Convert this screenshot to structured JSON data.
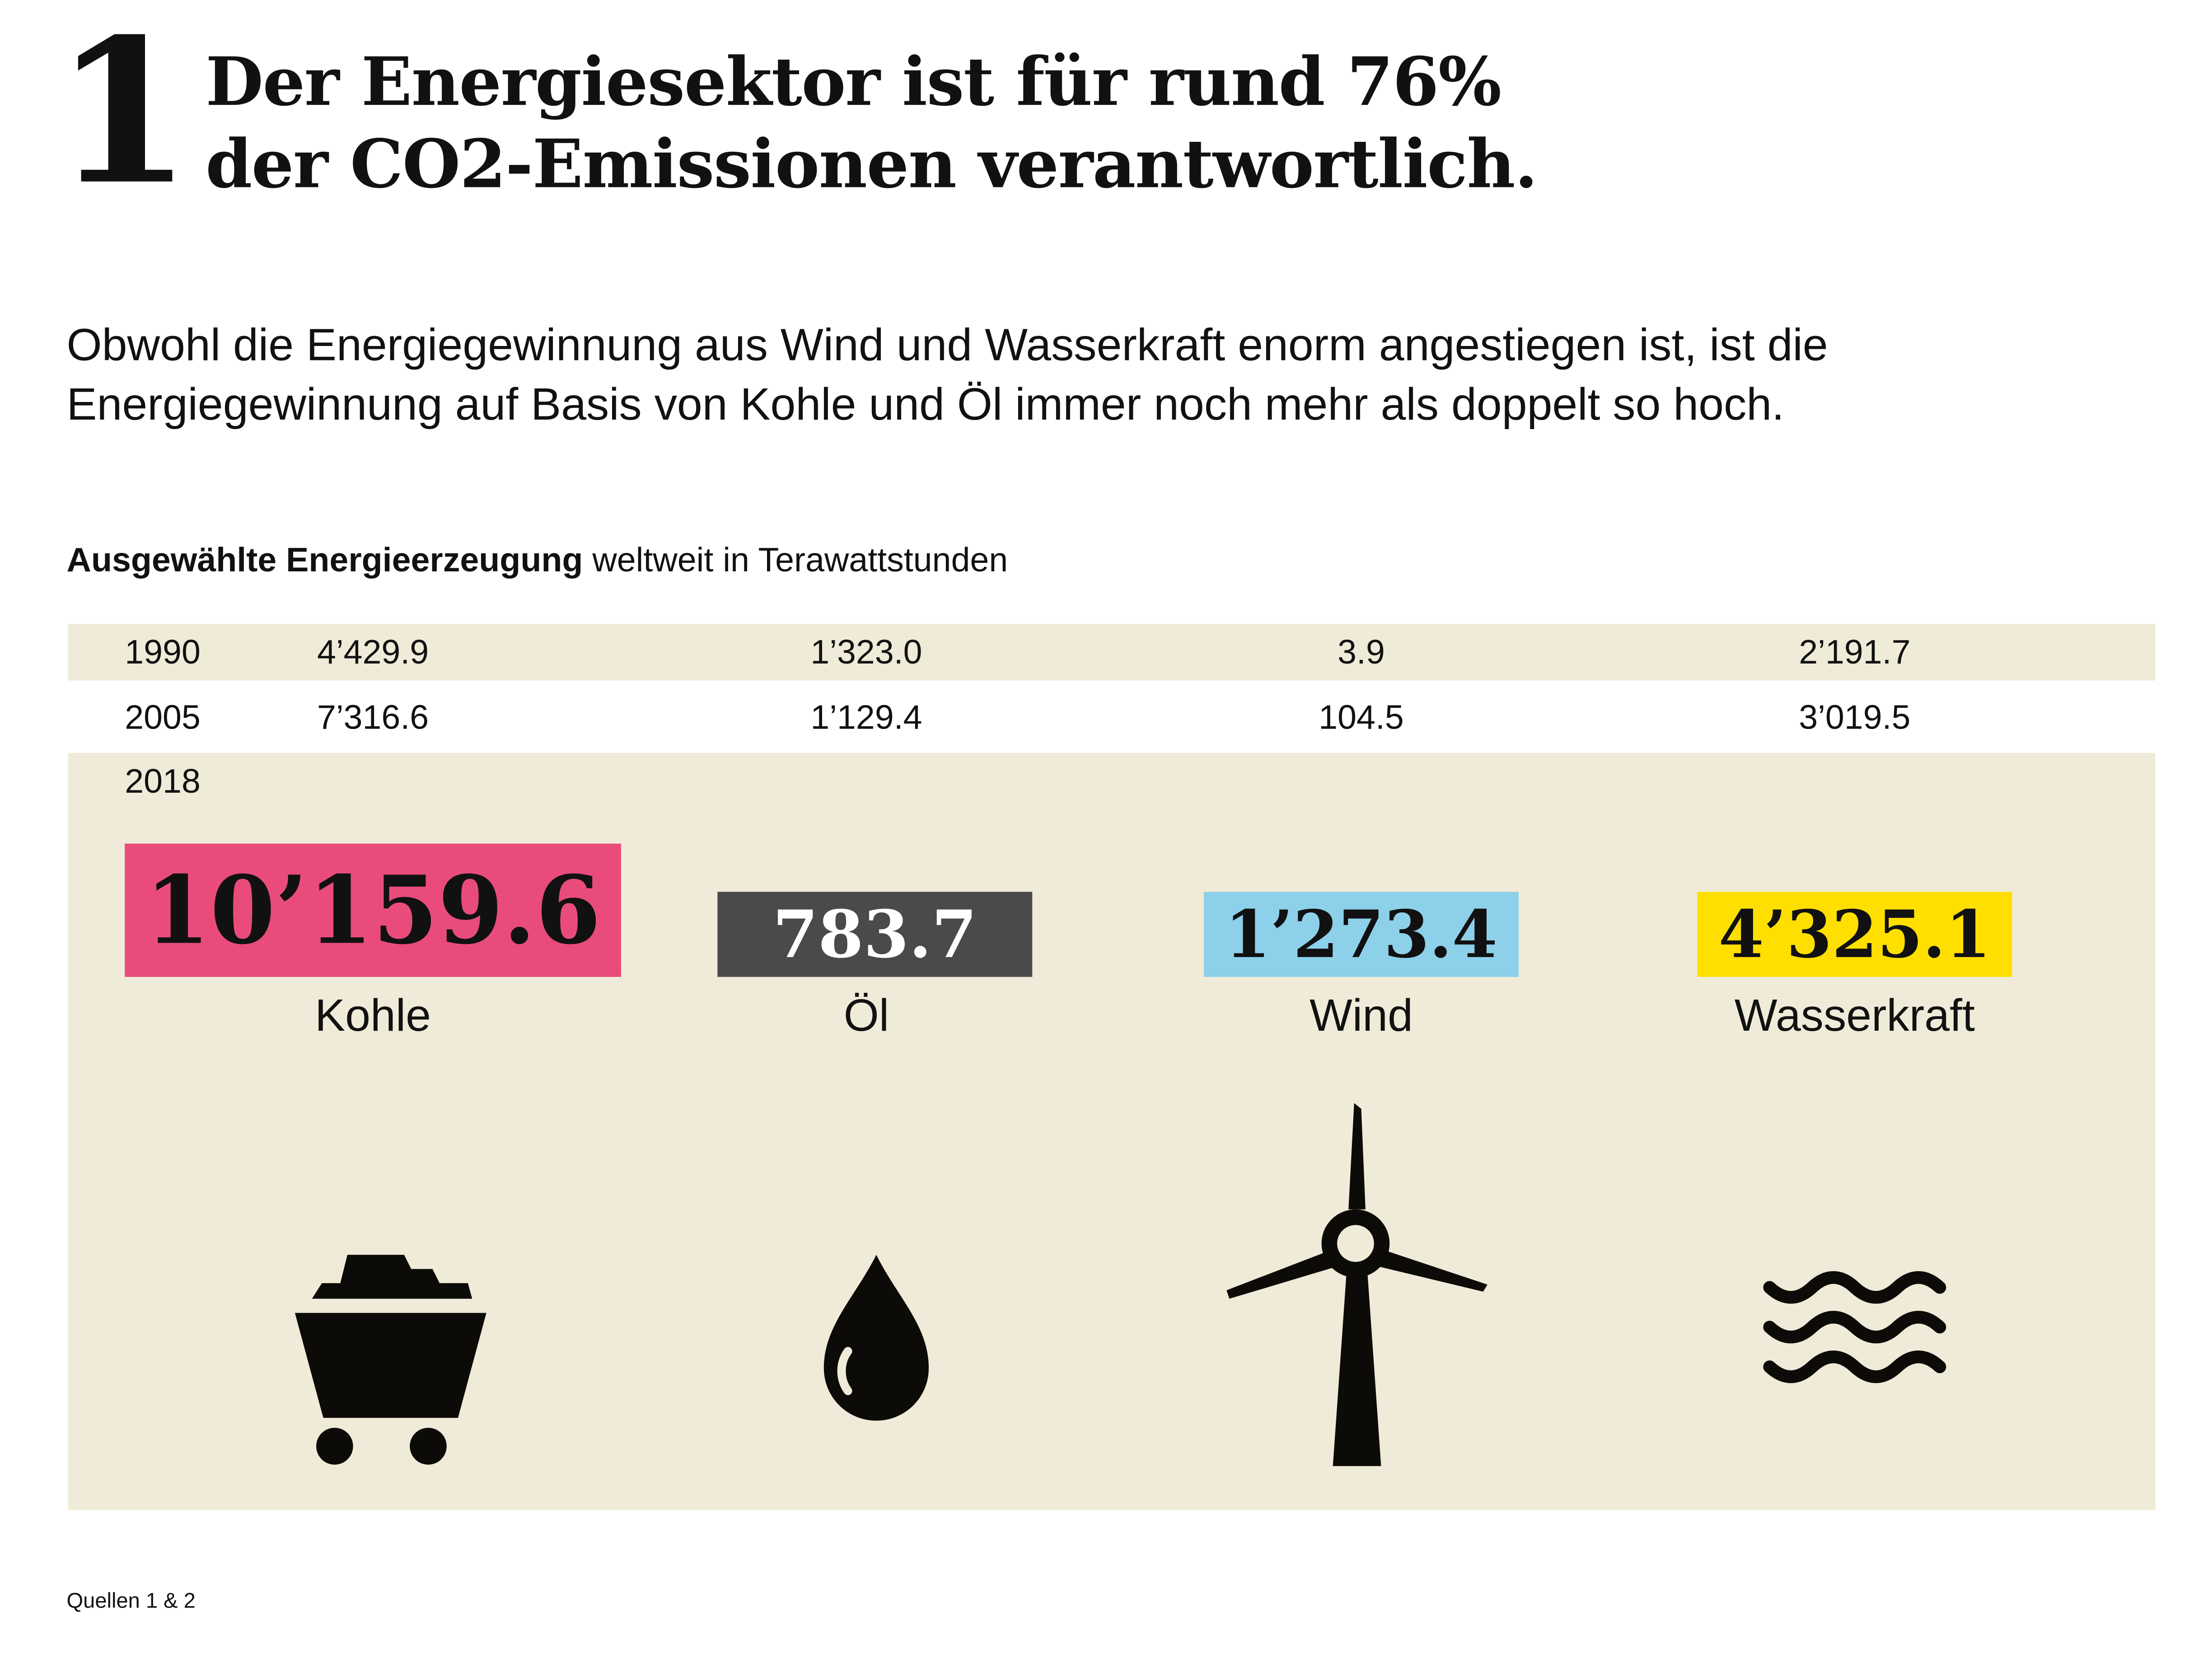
{
  "header": {
    "number": "1",
    "title_line1": "Der Energiesektor ist für rund 76%",
    "title_line2": "der CO2-Emissionen verantwortlich."
  },
  "lead": "Obwohl die Energiegewinnung aus Wind und Wasserkraft enorm angestiegen ist, ist die Energiegewinnung auf Basis von Kohle und Öl immer noch mehr als doppelt so hoch.",
  "subtitle": {
    "bold": "Ausgewählte Energieerzeugung",
    "rest": " weltweit in Terawattstunden"
  },
  "chart_data": {
    "type": "table",
    "title": "Ausgewählte Energieerzeugung weltweit in Terawattstunden",
    "categories": [
      "Kohle",
      "Öl",
      "Wind",
      "Wasserkraft"
    ],
    "rows": [
      {
        "year": "1990",
        "values": [
          "4’429.9",
          "1’323.0",
          "3.9",
          "2’191.7"
        ]
      },
      {
        "year": "2005",
        "values": [
          "7’316.6",
          "1’129.4",
          "104.5",
          "3’019.5"
        ]
      },
      {
        "year": "2018",
        "values": [
          "10’159.6",
          "783.7",
          "1’273.4",
          "4’325.1"
        ]
      }
    ],
    "colors": {
      "Kohle": "#e94c7b",
      "Öl": "#4a4a4a",
      "Wind": "#8dd0ea",
      "Wasserkraft": "#ffdf00",
      "background": "#efebd8"
    },
    "icons": [
      "coal-cart-icon",
      "oil-drop-icon",
      "wind-turbine-icon",
      "water-waves-icon"
    ]
  },
  "footer": {
    "sources": "Quellen 1 & 2"
  }
}
